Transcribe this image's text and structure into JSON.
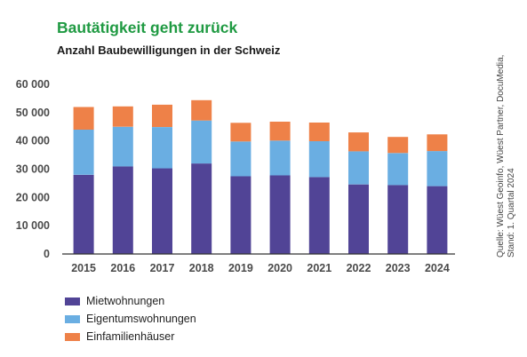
{
  "header": {
    "title": "Bautätigkeit geht zurück",
    "subtitle": "Anzahl Baubewilligungen in der Schweiz"
  },
  "source": {
    "line1": "Quelle: Wüest Geoinfo, Wüest Partner, DocuMedia,",
    "line2": "Stand: 1. Quartal 2024"
  },
  "colors": {
    "miet": "#514496",
    "eigentum": "#6aaee2",
    "efh": "#ee8148",
    "axis": "#333333"
  },
  "chart_data": {
    "type": "bar",
    "stacked": true,
    "categories": [
      "2015",
      "2016",
      "2017",
      "2018",
      "2019",
      "2020",
      "2021",
      "2022",
      "2023",
      "2024"
    ],
    "series": [
      {
        "name": "Mietwohnungen",
        "values": [
          28000,
          31000,
          30300,
          32000,
          27500,
          27800,
          27200,
          24600,
          24400,
          24000
        ]
      },
      {
        "name": "Eigentumswohnungen",
        "values": [
          16000,
          14000,
          14600,
          15200,
          12300,
          12300,
          12700,
          11700,
          11300,
          12400
        ]
      },
      {
        "name": "Einfamilienhäuser",
        "values": [
          8000,
          7200,
          7900,
          7200,
          6600,
          6700,
          6600,
          6700,
          5700,
          5900
        ]
      }
    ],
    "ylim": [
      0,
      60000
    ],
    "yticks": [
      0,
      10000,
      20000,
      30000,
      40000,
      50000,
      60000
    ],
    "ytick_labels": [
      "0",
      "10 000",
      "20 000",
      "30 000",
      "40 000",
      "50 000",
      "60 000"
    ],
    "legend_position": "bottom-left",
    "grid": false
  }
}
